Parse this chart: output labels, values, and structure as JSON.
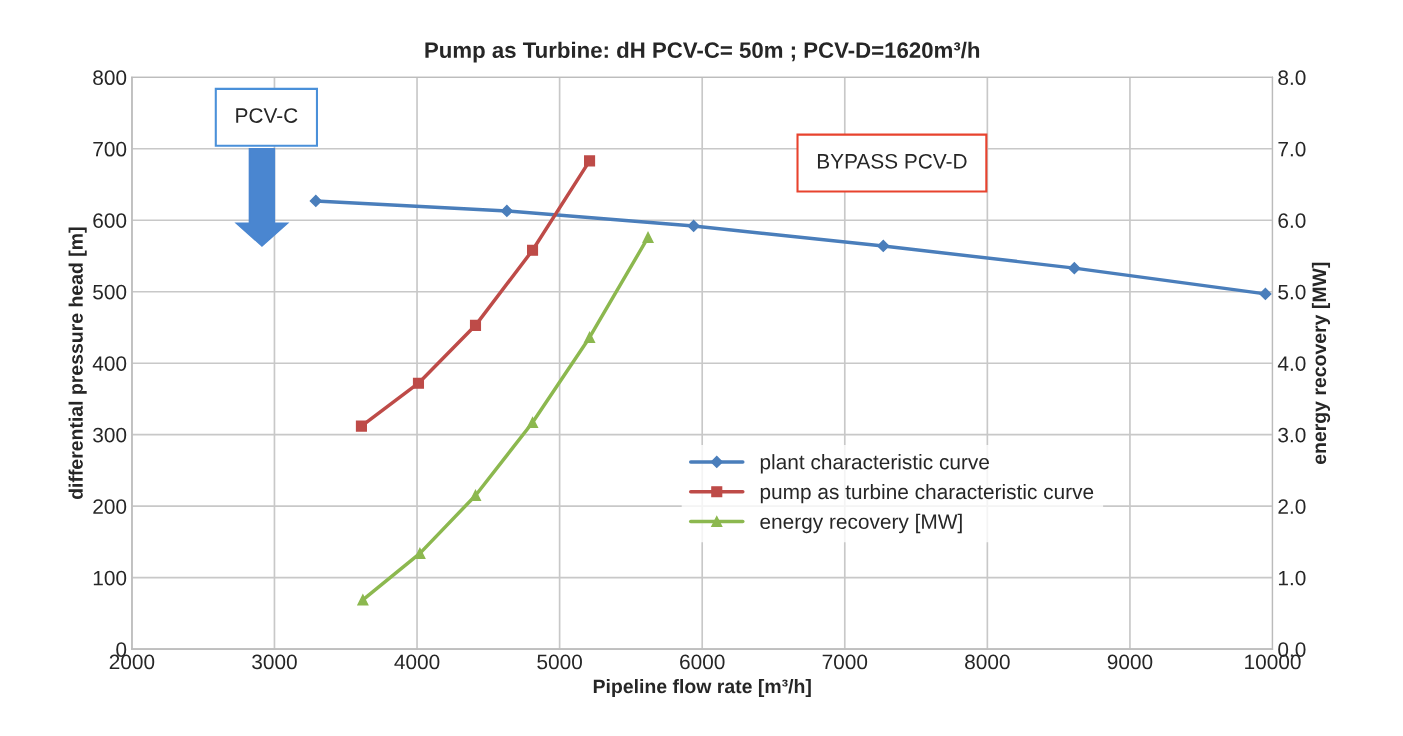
{
  "chart_data": {
    "type": "line",
    "title": "Pump as Turbine: dH PCV-C= 50m ; PCV-D=1620m³/h",
    "xlabel": "Pipeline flow rate [m³/h]",
    "ylabel": "differential pressure head [m]",
    "y2label": "energy recovery [MW]",
    "series": [
      {
        "name": "plant characteristic curve",
        "color": "#4a7ebb",
        "marker": "diamond",
        "x": [
          3290,
          4630,
          5940,
          7270,
          8610,
          9950
        ],
        "values": [
          627,
          613,
          592,
          564,
          533,
          497
        ]
      },
      {
        "name": "pump as turbine characteristic curve",
        "color": "#be4b48",
        "marker": "square",
        "x": [
          3610,
          4010,
          4410,
          4810,
          5210
        ],
        "values": [
          312,
          372,
          453,
          558,
          683
        ]
      },
      {
        "name": "energy recovery [MW]",
        "color": "#8cb84f",
        "marker": "triangle",
        "axis": "y2",
        "x": [
          3620,
          4020,
          4410,
          4810,
          5210,
          5620
        ],
        "values": [
          0.69,
          1.34,
          2.15,
          3.17,
          4.36,
          5.76
        ]
      }
    ],
    "xlim": [
      2000,
      10000
    ],
    "xticks": [
      2000,
      3000,
      4000,
      5000,
      6000,
      7000,
      8000,
      9000,
      10000
    ],
    "ylim": [
      0,
      800
    ],
    "yticks": [
      0,
      100,
      200,
      300,
      400,
      500,
      600,
      700,
      800
    ],
    "y2lim": [
      0,
      8
    ],
    "y2ticks": [
      {
        "value": 0,
        "label": "0.0"
      },
      {
        "value": 1,
        "label": "1.0"
      },
      {
        "value": 2,
        "label": "2.0"
      },
      {
        "value": 3,
        "label": "3.0"
      },
      {
        "value": 4,
        "label": "4.0"
      },
      {
        "value": 5,
        "label": "5.0"
      },
      {
        "value": 6,
        "label": "6.0"
      },
      {
        "value": 7,
        "label": "7.0"
      },
      {
        "value": 8,
        "label": "8.0"
      }
    ],
    "annotations": [
      "PCV-C",
      "BYPASS PCV-D"
    ],
    "grid": true,
    "legend": "bottom right",
    "line_style": "solid"
  }
}
